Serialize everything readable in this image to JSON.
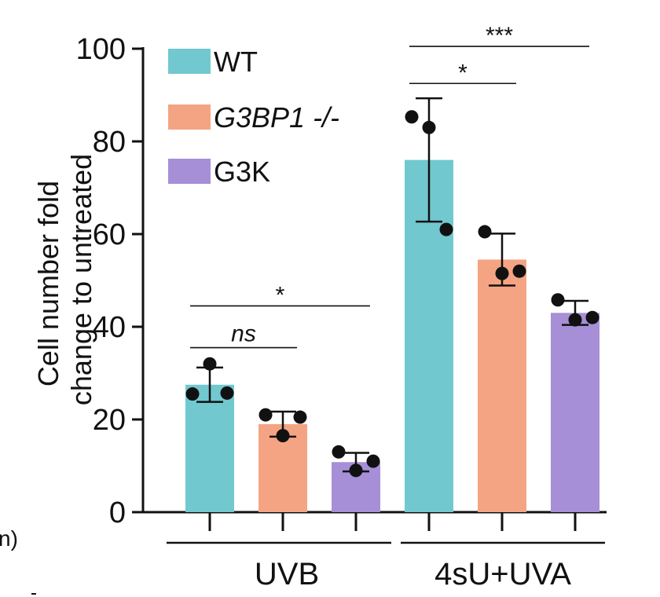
{
  "chart_data": {
    "type": "bar",
    "ylabel": [
      "Cell number fold",
      "change to untreated"
    ],
    "ylim": [
      0,
      100
    ],
    "yticks": [
      0,
      20,
      40,
      60,
      80,
      100
    ],
    "groups": [
      "UVB",
      "4sU+UVA"
    ],
    "series": [
      {
        "name": "WT",
        "italic": false,
        "color": "#72c8cf",
        "values": [
          27.5,
          76
        ],
        "errors": [
          3.7,
          13.3
        ],
        "points": [
          [
            25.5,
            32,
            25.7
          ],
          [
            85.3,
            83,
            61
          ]
        ]
      },
      {
        "name": "G3BP1 -/-",
        "italic": true,
        "color": "#f5a483",
        "values": [
          19,
          54.5
        ],
        "errors": [
          2.7,
          5.6
        ],
        "points": [
          [
            21,
            16.5,
            20.5
          ],
          [
            60.5,
            51.5,
            52
          ]
        ]
      },
      {
        "name": "G3K",
        "italic": false,
        "color": "#a68fd6",
        "values": [
          10.8,
          43
        ],
        "errors": [
          2.0,
          2.6
        ],
        "points": [
          [
            13,
            9,
            11
          ],
          [
            45.8,
            41.5,
            42
          ]
        ]
      }
    ],
    "significance": [
      {
        "label": "ns",
        "italic": true,
        "from_bar": 0,
        "to_bar": 1,
        "level": 35.5
      },
      {
        "label": "*",
        "italic": false,
        "from_bar": 0,
        "to_bar": 2,
        "level": 44.5
      },
      {
        "label": "*",
        "italic": false,
        "from_bar": 3,
        "to_bar": 4,
        "level": 92.5
      },
      {
        "label": "***",
        "italic": false,
        "from_bar": 3,
        "to_bar": 5,
        "level": 100.5
      }
    ],
    "edge_fragment": "n)"
  }
}
